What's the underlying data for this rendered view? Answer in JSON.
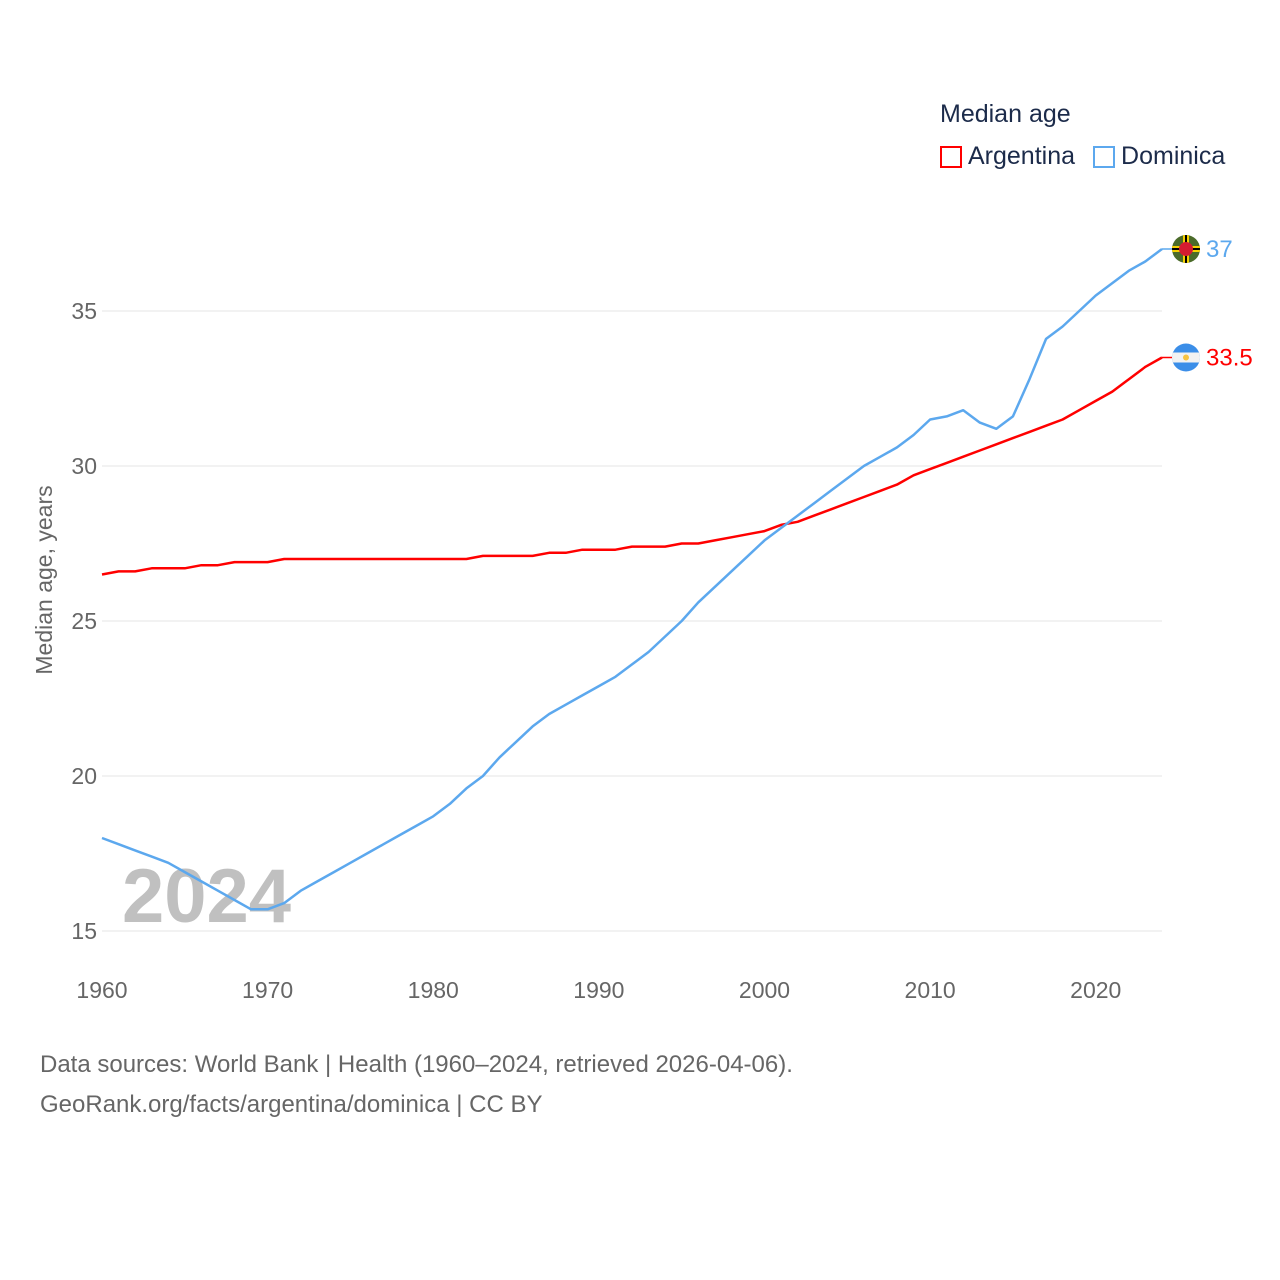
{
  "chart_data": {
    "type": "line",
    "title": "Median age",
    "xlabel": "",
    "ylabel": "Median age, years",
    "xlim": [
      1960,
      2024
    ],
    "ylim": [
      15,
      37
    ],
    "x_ticks": [
      "1960",
      "1970",
      "1980",
      "1990",
      "2000",
      "2010",
      "2020"
    ],
    "y_ticks": [
      "15",
      "20",
      "25",
      "30",
      "35"
    ],
    "grid": true,
    "legend_placement": "top-right",
    "watermark_year": "2024",
    "x": [
      1960,
      1961,
      1962,
      1963,
      1964,
      1965,
      1966,
      1967,
      1968,
      1969,
      1970,
      1971,
      1972,
      1973,
      1974,
      1975,
      1976,
      1977,
      1978,
      1979,
      1980,
      1981,
      1982,
      1983,
      1984,
      1985,
      1986,
      1987,
      1988,
      1989,
      1990,
      1991,
      1992,
      1993,
      1994,
      1995,
      1996,
      1997,
      1998,
      1999,
      2000,
      2001,
      2002,
      2003,
      2004,
      2005,
      2006,
      2007,
      2008,
      2009,
      2010,
      2011,
      2012,
      2013,
      2014,
      2015,
      2016,
      2017,
      2018,
      2019,
      2020,
      2021,
      2022,
      2023,
      2024
    ],
    "series": [
      {
        "name": "Argentina",
        "color": "#ff0000",
        "end_label": "33.5",
        "flag": "argentina-flag",
        "values": [
          26.5,
          26.6,
          26.6,
          26.7,
          26.7,
          26.7,
          26.8,
          26.8,
          26.9,
          26.9,
          26.9,
          27.0,
          27.0,
          27.0,
          27.0,
          27.0,
          27.0,
          27.0,
          27.0,
          27.0,
          27.0,
          27.0,
          27.0,
          27.1,
          27.1,
          27.1,
          27.1,
          27.2,
          27.2,
          27.3,
          27.3,
          27.3,
          27.4,
          27.4,
          27.4,
          27.5,
          27.5,
          27.6,
          27.7,
          27.8,
          27.9,
          28.1,
          28.2,
          28.4,
          28.6,
          28.8,
          29.0,
          29.2,
          29.4,
          29.7,
          29.9,
          30.1,
          30.3,
          30.5,
          30.7,
          30.9,
          31.1,
          31.3,
          31.5,
          31.8,
          32.1,
          32.4,
          32.8,
          33.2,
          33.5
        ]
      },
      {
        "name": "Dominica",
        "color": "#5ca8ee",
        "end_label": "37",
        "flag": "dominica-flag",
        "values": [
          18.0,
          17.8,
          17.6,
          17.4,
          17.2,
          16.9,
          16.6,
          16.3,
          16.0,
          15.7,
          15.7,
          15.9,
          16.3,
          16.6,
          16.9,
          17.2,
          17.5,
          17.8,
          18.1,
          18.4,
          18.7,
          19.1,
          19.6,
          20.0,
          20.6,
          21.1,
          21.6,
          22.0,
          22.3,
          22.6,
          22.9,
          23.2,
          23.6,
          24.0,
          24.5,
          25.0,
          25.6,
          26.1,
          26.6,
          27.1,
          27.6,
          28.0,
          28.4,
          28.8,
          29.2,
          29.6,
          30.0,
          30.3,
          30.6,
          31.0,
          31.5,
          31.6,
          31.8,
          31.4,
          31.2,
          31.6,
          32.8,
          34.1,
          34.5,
          35.0,
          35.5,
          35.9,
          36.3,
          36.6,
          37.0
        ]
      }
    ]
  },
  "footer": {
    "line1": "Data sources: World Bank | Health (1960–2024, retrieved 2026-04-06).",
    "line2": "GeoRank.org/facts/argentina/dominica | CC BY"
  }
}
